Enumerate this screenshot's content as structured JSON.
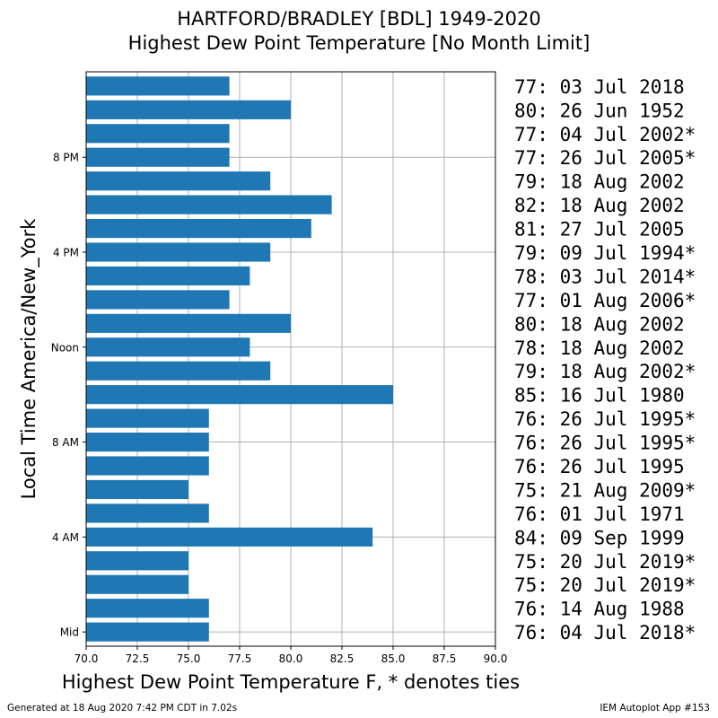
{
  "chart_data": {
    "type": "bar",
    "orientation": "horizontal",
    "title": "HARTFORD/BRADLEY [BDL] 1949-2020",
    "subtitle": "Highest Dew Point Temperature [No Month Limit]",
    "xlabel": "Highest Dew Point Temperature F, * denotes ties",
    "ylabel": "Local Time America/New_York",
    "xlim": [
      70,
      90
    ],
    "xticks": [
      "70.0",
      "72.5",
      "75.0",
      "77.5",
      "80.0",
      "82.5",
      "85.0",
      "87.5",
      "90.0"
    ],
    "yticks": [
      {
        "hour": 0,
        "label": "Mid"
      },
      {
        "hour": 4,
        "label": "4 AM"
      },
      {
        "hour": 8,
        "label": "8 AM"
      },
      {
        "hour": 12,
        "label": "Noon"
      },
      {
        "hour": 16,
        "label": "4 PM"
      },
      {
        "hour": 20,
        "label": "8 PM"
      }
    ],
    "grid": true,
    "bar_color": "#1f77b4",
    "hours": [
      0,
      1,
      2,
      3,
      4,
      5,
      6,
      7,
      8,
      9,
      10,
      11,
      12,
      13,
      14,
      15,
      16,
      17,
      18,
      19,
      20,
      21,
      22,
      23
    ],
    "values": [
      76,
      76,
      75,
      75,
      84,
      76,
      75,
      76,
      76,
      76,
      85,
      79,
      78,
      80,
      77,
      78,
      79,
      81,
      82,
      79,
      77,
      77,
      80,
      77
    ],
    "annotations": [
      "76: 04 Jul 2018*",
      "76: 14 Aug 1988",
      "75: 20 Jul 2019*",
      "75: 20 Jul 2019*",
      "84: 09 Sep 1999",
      "76: 01 Jul 1971",
      "75: 21 Aug 2009*",
      "76: 26 Jul 1995",
      "76: 26 Jul 1995*",
      "76: 26 Jul 1995*",
      "85: 16 Jul 1980",
      "79: 18 Aug 2002*",
      "78: 18 Aug 2002",
      "80: 18 Aug 2002",
      "77: 01 Aug 2006*",
      "78: 03 Jul 2014*",
      "79: 09 Jul 1994*",
      "81: 27 Jul 2005",
      "82: 18 Aug 2002",
      "79: 18 Aug 2002",
      "77: 26 Jul 2005*",
      "77: 04 Jul 2002*",
      "80: 26 Jun 1952",
      "77: 03 Jul 2018"
    ]
  },
  "footer": {
    "generated": "Generated at 18 Aug 2020 7:42 PM CDT in 7.02s",
    "app": "IEM Autoplot App #153"
  }
}
